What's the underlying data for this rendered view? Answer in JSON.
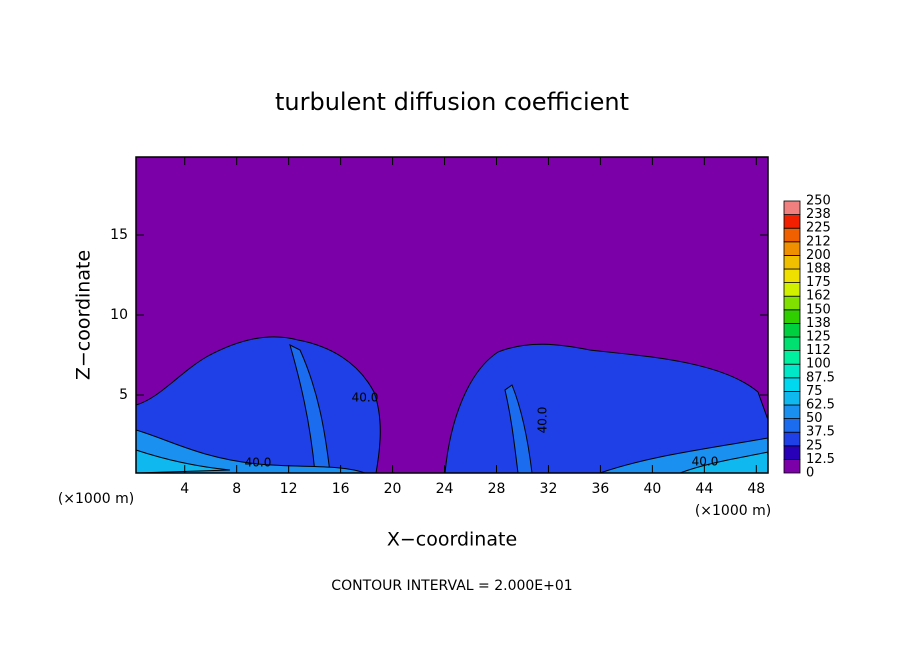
{
  "chart_data": {
    "type": "contour",
    "title": "turbulent diffusion coefficient",
    "x_label": "X−coordinate",
    "y_label": "Z−coordinate",
    "x_unit": "(×1000 m)",
    "footnote": "CONTOUR INTERVAL = 2.000E+01",
    "xlim": [
      0.25,
      48.9
    ],
    "xticks": [
      4,
      8,
      12,
      16,
      20,
      24,
      28,
      32,
      36,
      40,
      44,
      48
    ],
    "ylim": [
      0.125,
      19.875
    ],
    "yticks": [
      5,
      10,
      15
    ],
    "levels": [
      0,
      12.5,
      25,
      37.5,
      50,
      62.5,
      75,
      87.5,
      100,
      112,
      125,
      138,
      150,
      162,
      175,
      188,
      200,
      212,
      225,
      238,
      250
    ],
    "colors": [
      "#7b00a8",
      "#2800b8",
      "#1e40e6",
      "#1c6cf0",
      "#1a90f0",
      "#10b8f0",
      "#00d8f0",
      "#00e8c8",
      "#00f0a0",
      "#00e070",
      "#00d040",
      "#30d000",
      "#80e000",
      "#d0f000",
      "#f0e000",
      "#f0c000",
      "#f09000",
      "#f06000",
      "#f02000",
      "#f08080"
    ],
    "contour_labels": [
      "40.0",
      "40.0",
      "40.0",
      "40.0"
    ]
  }
}
